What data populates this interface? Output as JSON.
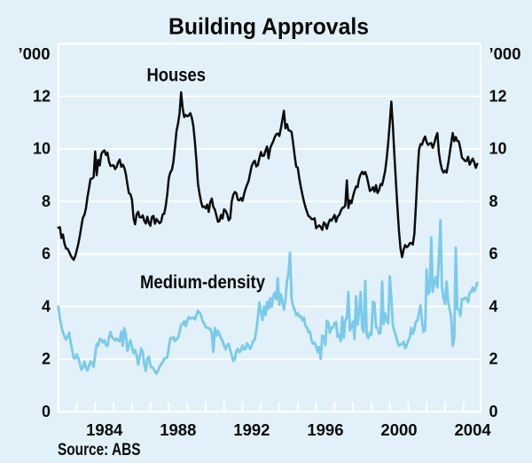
{
  "chart_data": {
    "type": "line",
    "title": "Building Approvals",
    "unit_label": "’000",
    "x_start_year": 1982,
    "x_end_year": 2004.75,
    "frequency": "monthly",
    "ylim": [
      0,
      14
    ],
    "y_ticks": [
      0,
      2,
      4,
      6,
      8,
      10,
      12
    ],
    "x_tick_years": [
      1984,
      1988,
      1992,
      1996,
      2000,
      2004
    ],
    "grid": "horizontal-white",
    "legend_position": "inline-labels",
    "series": [
      {
        "name": "Houses",
        "color": "#0c0c0c",
        "values": [
          7.0,
          7.02,
          6.61,
          6.74,
          6.4,
          6.21,
          6.2,
          6.09,
          5.95,
          5.85,
          5.78,
          5.92,
          6.14,
          6.38,
          6.69,
          7.05,
          7.38,
          7.49,
          7.74,
          8.17,
          8.51,
          8.86,
          8.87,
          8.93,
          9.9,
          9.0,
          9.58,
          9.37,
          9.8,
          9.9,
          9.94,
          9.77,
          9.86,
          9.52,
          9.35,
          9.37,
          9.37,
          9.23,
          9.32,
          9.49,
          9.59,
          9.32,
          9.4,
          9.28,
          9.04,
          8.65,
          8.31,
          8.28,
          8.06,
          7.37,
          7.13,
          7.5,
          7.61,
          7.4,
          7.39,
          7.47,
          7.26,
          7.16,
          7.42,
          7.18,
          7.07,
          7.41,
          7.45,
          7.15,
          7.33,
          7.25,
          7.17,
          7.23,
          7.51,
          7.53,
          7.83,
          8.29,
          8.89,
          9.11,
          9.2,
          9.51,
          10.08,
          10.68,
          10.96,
          11.35,
          12.15,
          11.56,
          11.21,
          11.29,
          11.24,
          11.27,
          11.36,
          11.18,
          10.86,
          10.27,
          9.53,
          8.67,
          8.3,
          7.99,
          7.79,
          7.81,
          7.74,
          7.88,
          7.6,
          7.97,
          8.11,
          7.79,
          7.69,
          7.47,
          7.23,
          7.25,
          7.49,
          7.35,
          7.7,
          7.65,
          7.52,
          7.28,
          7.36,
          8.0,
          8.25,
          8.36,
          8.31,
          8.06,
          8.04,
          8.13,
          8.02,
          8.27,
          8.48,
          8.64,
          8.78,
          9.07,
          9.35,
          9.48,
          9.55,
          9.33,
          9.38,
          9.64,
          9.88,
          9.73,
          9.74,
          9.93,
          10.09,
          9.64,
          10.01,
          10.16,
          10.28,
          10.44,
          10.56,
          10.58,
          10.49,
          10.77,
          11.11,
          11.45,
          10.78,
          10.94,
          10.71,
          10.69,
          10.64,
          10.22,
          9.74,
          9.32,
          9.29,
          8.89,
          8.56,
          8.27,
          8.01,
          7.79,
          7.61,
          7.44,
          7.41,
          7.33,
          7.32,
          7.36,
          6.98,
          7.04,
          7.09,
          7.03,
          6.92,
          7.2,
          7.14,
          6.96,
          7.17,
          7.31,
          7.27,
          7.37,
          7.49,
          7.23,
          7.43,
          7.48,
          7.63,
          7.75,
          7.77,
          7.86,
          8.8,
          7.75,
          8.04,
          7.93,
          8.19,
          8.4,
          8.57,
          8.54,
          8.87,
          9.03,
          9.13,
          9.04,
          9.12,
          8.95,
          8.69,
          8.4,
          8.44,
          8.54,
          8.37,
          8.62,
          8.32,
          8.43,
          8.66,
          8.62,
          8.89,
          9.17,
          9.65,
          10.25,
          11.01,
          11.8,
          10.89,
          9.75,
          8.74,
          7.75,
          6.85,
          6.2,
          5.88,
          6.17,
          6.34,
          6.26,
          6.3,
          6.41,
          6.42,
          6.36,
          6.76,
          7.82,
          8.99,
          9.95,
          10.18,
          10.16,
          10.35,
          10.47,
          10.25,
          10.15,
          10.2,
          10.22,
          10.04,
          10.21,
          10.44,
          10.6,
          9.85,
          9.47,
          9.21,
          9.1,
          9.17,
          9.1,
          9.42,
          9.82,
          10.21,
          10.6,
          10.29,
          10.45,
          10.3,
          10.28,
          10.01,
          9.67,
          9.61,
          9.54,
          9.54,
          9.7,
          9.4,
          9.51,
          9.63,
          9.5,
          9.28,
          9.43
        ]
      },
      {
        "name": "Medium-density",
        "color": "#7ccaeb",
        "values": [
          4.0,
          3.55,
          3.23,
          3.02,
          2.87,
          2.74,
          2.85,
          3.01,
          2.64,
          2.35,
          2.04,
          2.03,
          2.19,
          2.04,
          1.83,
          1.6,
          1.69,
          1.91,
          1.68,
          1.57,
          1.76,
          1.91,
          1.84,
          1.71,
          2.17,
          2.58,
          2.52,
          2.77,
          2.74,
          2.64,
          2.72,
          2.54,
          2.5,
          2.82,
          3.03,
          2.83,
          2.78,
          2.71,
          2.79,
          2.72,
          2.68,
          3.05,
          2.51,
          3.18,
          2.95,
          2.32,
          2.52,
          2.72,
          2.45,
          2.23,
          2.35,
          2.14,
          1.8,
          2.1,
          2.41,
          2.27,
          1.8,
          1.56,
          2.01,
          2.09,
          1.74,
          1.68,
          1.65,
          1.52,
          1.45,
          1.57,
          1.71,
          1.81,
          1.88,
          2.03,
          2.03,
          2.08,
          2.45,
          2.8,
          2.79,
          2.84,
          2.68,
          2.76,
          2.81,
          3.02,
          3.32,
          3.32,
          3.44,
          3.26,
          3.47,
          3.6,
          3.54,
          3.57,
          3.58,
          3.51,
          3.69,
          3.84,
          3.78,
          3.67,
          3.45,
          3.36,
          3.22,
          3.2,
          3.17,
          3.15,
          2.98,
          2.28,
          3.19,
          2.89,
          3.08,
          2.95,
          2.8,
          2.69,
          2.52,
          2.37,
          2.53,
          2.58,
          2.35,
          2.16,
          1.93,
          1.99,
          2.31,
          2.39,
          2.27,
          2.33,
          2.52,
          2.37,
          2.38,
          2.6,
          2.5,
          2.39,
          2.52,
          2.7,
          2.74,
          3.1,
          3.55,
          4.16,
          3.81,
          3.49,
          4.0,
          3.68,
          4.18,
          3.91,
          4.32,
          3.99,
          4.36,
          4.53,
          4.27,
          5.08,
          4.07,
          4.47,
          4.18,
          3.88,
          4.26,
          4.98,
          5.26,
          6.05,
          4.28,
          4.02,
          3.88,
          3.67,
          3.74,
          3.62,
          3.64,
          3.48,
          3.58,
          3.27,
          3.21,
          3.03,
          3.05,
          2.71,
          2.59,
          2.62,
          2.5,
          2.27,
          2.46,
          2.01,
          2.9,
          2.85,
          2.53,
          3.46,
          3.39,
          3.0,
          3.21,
          3.2,
          3.36,
          3.41,
          2.85,
          2.93,
          2.69,
          3.61,
          2.81,
          3.47,
          3.57,
          4.55,
          3.09,
          3.24,
          3.43,
          2.77,
          4.39,
          3.32,
          3.79,
          4.55,
          3.17,
          3.03,
          4.98,
          2.92,
          2.8,
          3.02,
          2.92,
          4.18,
          4.15,
          3.21,
          3.18,
          2.97,
          3.01,
          4.95,
          3.34,
          3.74,
          3.47,
          3.37,
          5.15,
          4.32,
          3.3,
          3.06,
          2.89,
          2.64,
          2.51,
          2.56,
          2.57,
          2.66,
          2.42,
          2.52,
          2.7,
          2.82,
          3.19,
          2.96,
          3.13,
          3.43,
          3.46,
          3.78,
          4.05,
          3.43,
          3.04,
          3.12,
          5.41,
          4.47,
          4.6,
          6.63,
          4.57,
          4.92,
          5.12,
          4.73,
          5.86,
          7.28,
          4.76,
          4.33,
          4.1,
          4.95,
          4.19,
          3.9,
          3.61,
          2.5,
          2.81,
          6.24,
          3.91,
          3.9,
          3.65,
          4.3,
          4.27,
          4.33,
          4.32,
          4.17,
          4.53,
          4.55,
          4.72,
          4.58,
          4.73,
          4.9
        ]
      }
    ],
    "source": "Source: ABS"
  },
  "labels": {
    "title": "Building Approvals",
    "houses": "Houses",
    "medium": "Medium-density",
    "source": "Source: ABS",
    "unit_left": "’000",
    "unit_right": "’000"
  },
  "colors": {
    "background": "#e2f1f9",
    "grid": "#ffffff",
    "text": "#0a0a0a",
    "houses_line": "#0c0c0c",
    "medium_line": "#7ccaeb"
  }
}
